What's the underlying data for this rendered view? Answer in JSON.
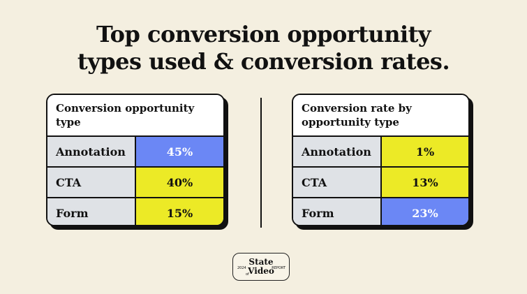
{
  "title": {
    "line1": "Top conversion opportunity",
    "line2": "types used & conversion rates."
  },
  "chart_data": [
    {
      "type": "table",
      "header": "Conversion opportunity type",
      "rows": [
        {
          "label": "Annotation",
          "value": "45%",
          "color": "#6b87f5"
        },
        {
          "label": "CTA",
          "value": "40%",
          "color": "#ecea26"
        },
        {
          "label": "Form",
          "value": "15%",
          "color": "#ecea26"
        }
      ]
    },
    {
      "type": "table",
      "header": "Conversion rate by opportunity type",
      "rows": [
        {
          "label": "Annotation",
          "value": "1%",
          "color": "#ecea26"
        },
        {
          "label": "CTA",
          "value": "13%",
          "color": "#ecea26"
        },
        {
          "label": "Form",
          "value": "23%",
          "color": "#6b87f5"
        }
      ]
    }
  ],
  "logo": {
    "line1": "State",
    "line2": "Video",
    "year": "2024",
    "of": "of",
    "report": "REPORT"
  }
}
